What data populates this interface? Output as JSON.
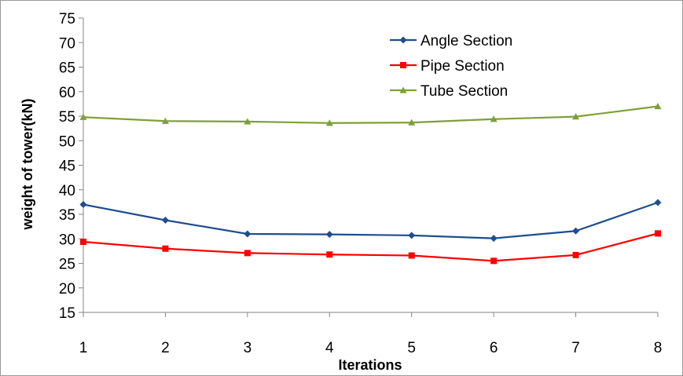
{
  "chart_data": {
    "type": "line",
    "title": "",
    "xlabel": "Iterations",
    "ylabel": "weight of tower(kN)",
    "x": [
      1,
      2,
      3,
      4,
      5,
      6,
      7,
      8
    ],
    "xlim": [
      1,
      8
    ],
    "ylim": [
      15,
      75
    ],
    "y_ticks": [
      15,
      20,
      25,
      30,
      35,
      40,
      45,
      50,
      55,
      60,
      65,
      70,
      75
    ],
    "grid": false,
    "legend_position": "top-right",
    "series": [
      {
        "name": "Angle Section",
        "color": "#1f4e8c",
        "marker": "diamond",
        "values": [
          37.0,
          33.8,
          31.0,
          30.9,
          30.7,
          30.1,
          31.6,
          37.4
        ]
      },
      {
        "name": "Pipe Section",
        "color": "#ff0000",
        "marker": "square",
        "values": [
          29.4,
          28.0,
          27.1,
          26.8,
          26.6,
          25.5,
          26.7,
          31.1
        ]
      },
      {
        "name": "Tube Section",
        "color": "#7f9f3a",
        "marker": "triangle",
        "values": [
          54.8,
          54.0,
          53.9,
          53.6,
          53.7,
          54.4,
          54.9,
          57.0
        ]
      }
    ]
  }
}
